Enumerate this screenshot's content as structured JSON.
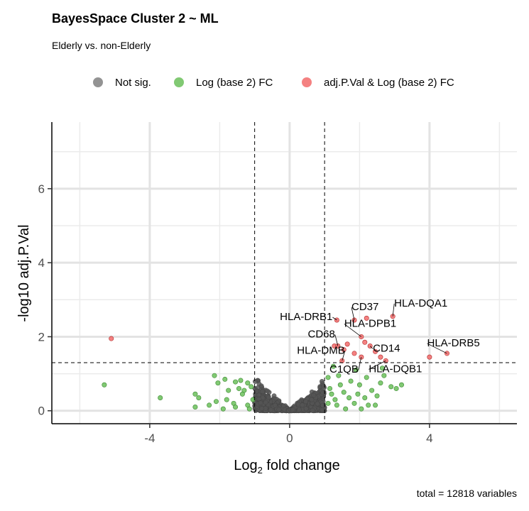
{
  "chart_data": {
    "type": "scatter",
    "title": "BayesSpace Cluster 2 ~ ML",
    "subtitle": "Elderly vs. non-Elderly",
    "xlabel_main": "Log",
    "xlabel_sub": "2",
    "xlabel_rest": " fold change",
    "ylabel": "-log10 adj.P.Val",
    "xlim": [
      -6.8,
      6.5
    ],
    "ylim": [
      -0.35,
      7.8
    ],
    "xticks": [
      -4,
      0,
      4
    ],
    "xtick_labels": [
      "-4",
      "0",
      "4"
    ],
    "yticks": [
      0,
      2,
      4,
      6
    ],
    "ytick_labels": [
      "0",
      "2",
      "4",
      "6"
    ],
    "minor_xticks": [
      -6,
      -2,
      2,
      6
    ],
    "minor_yticks": [
      1,
      3,
      5,
      7
    ],
    "fc_cutoffs": [
      -1,
      1
    ],
    "p_cutoff": 1.3,
    "grid": true,
    "legend_position": "top",
    "caption": "total = 12818 variables",
    "legend": [
      {
        "label": "Not sig.",
        "color": "#808080"
      },
      {
        "label": "Log (base 2) FC",
        "color": "#6bbf5a"
      },
      {
        "label": "adj.P.Val & Log (base 2) FC",
        "color": "#f26b6b"
      }
    ],
    "series": [
      {
        "name": "adj.P.Val & Log (base 2) FC",
        "color": "#f26b6b",
        "points": [
          [
            -5.1,
            1.95
          ],
          [
            1.28,
            1.75
          ],
          [
            1.38,
            1.75
          ],
          [
            1.55,
            1.65
          ],
          [
            1.35,
            2.45
          ],
          [
            1.85,
            2.45
          ],
          [
            2.2,
            2.5
          ],
          [
            1.65,
            1.8
          ],
          [
            2.05,
            2.0
          ],
          [
            2.3,
            1.75
          ],
          [
            2.45,
            1.6
          ],
          [
            2.6,
            1.45
          ],
          [
            2.05,
            1.45
          ],
          [
            1.5,
            1.35
          ],
          [
            1.85,
            1.55
          ],
          [
            2.95,
            2.55
          ],
          [
            2.75,
            1.35
          ],
          [
            4.0,
            1.45
          ],
          [
            4.5,
            1.55
          ],
          [
            2.15,
            1.85
          ]
        ]
      },
      {
        "name": "Log (base 2) FC",
        "color": "#6bbf5a",
        "points": [
          [
            -5.3,
            0.7
          ],
          [
            -3.7,
            0.35
          ],
          [
            -2.7,
            0.45
          ],
          [
            -2.6,
            0.35
          ],
          [
            -2.7,
            0.1
          ],
          [
            -2.15,
            0.95
          ],
          [
            -2.05,
            0.75
          ],
          [
            -1.85,
            0.85
          ],
          [
            -1.55,
            0.78
          ],
          [
            -1.35,
            0.45
          ],
          [
            -1.4,
            0.82
          ],
          [
            -1.2,
            0.75
          ],
          [
            -1.1,
            0.65
          ],
          [
            -1.8,
            0.3
          ],
          [
            -1.6,
            0.2
          ],
          [
            -1.2,
            0.15
          ],
          [
            -1.9,
            0.05
          ],
          [
            -2.1,
            0.25
          ],
          [
            -1.3,
            0.55
          ],
          [
            -1.05,
            0.3
          ],
          [
            -1.55,
            0.1
          ],
          [
            -1.75,
            0.55
          ],
          [
            -1.15,
            0.05
          ],
          [
            -2.3,
            0.15
          ],
          [
            -1.45,
            0.6
          ],
          [
            1.25,
            1.2
          ],
          [
            1.1,
            0.9
          ],
          [
            1.4,
            0.95
          ],
          [
            1.15,
            0.6
          ],
          [
            1.3,
            0.3
          ],
          [
            1.55,
            0.5
          ],
          [
            1.75,
            0.8
          ],
          [
            1.9,
            1.1
          ],
          [
            2.0,
            0.7
          ],
          [
            2.2,
            0.9
          ],
          [
            2.35,
            0.55
          ],
          [
            2.5,
            0.4
          ],
          [
            2.6,
            0.75
          ],
          [
            2.65,
            1.15
          ],
          [
            2.7,
            0.95
          ],
          [
            2.9,
            0.65
          ],
          [
            3.05,
            0.6
          ],
          [
            3.2,
            0.7
          ],
          [
            1.35,
            0.15
          ],
          [
            1.6,
            0.05
          ],
          [
            1.85,
            0.2
          ],
          [
            2.05,
            0.05
          ],
          [
            2.25,
            0.15
          ],
          [
            1.1,
            0.2
          ],
          [
            1.45,
            0.7
          ],
          [
            2.15,
            0.35
          ],
          [
            2.45,
            0.15
          ],
          [
            1.7,
            0.35
          ],
          [
            1.95,
            0.45
          ],
          [
            1.2,
            0.45
          ]
        ]
      }
    ],
    "labels": [
      {
        "text": "HLA-DRB1",
        "x": 1.35,
        "y": 2.45,
        "anchor": "end",
        "dx": -6,
        "dy": 0
      },
      {
        "text": "CD37",
        "x": 1.85,
        "y": 2.45,
        "anchor": "start",
        "dx": -4,
        "dy": -14
      },
      {
        "text": "HLA-DQA1",
        "x": 2.95,
        "y": 2.55,
        "anchor": "start",
        "dx": 2,
        "dy": -14
      },
      {
        "text": "HLA-DPB1",
        "x": 2.05,
        "y": 2.0,
        "anchor": "start",
        "dx": -24,
        "dy": -14
      },
      {
        "text": "CD68",
        "x": 1.38,
        "y": 1.75,
        "anchor": "end",
        "dx": -4,
        "dy": -12
      },
      {
        "text": "CD14",
        "x": 2.3,
        "y": 1.75,
        "anchor": "start",
        "dx": 4,
        "dy": 8
      },
      {
        "text": "HLA-DRB5",
        "x": 4.5,
        "y": 1.55,
        "anchor": "start",
        "dx": -28,
        "dy": -10
      },
      {
        "text": "HLA-DMB",
        "x": 1.5,
        "y": 1.35,
        "anchor": "end",
        "dx": 4,
        "dy": -10
      },
      {
        "text": "HLA-DQB1",
        "x": 2.75,
        "y": 1.35,
        "anchor": "start",
        "dx": -24,
        "dy": 16
      },
      {
        "text": "C1QB",
        "x": 2.05,
        "y": 1.45,
        "anchor": "end",
        "dx": -4,
        "dy": 22
      }
    ],
    "not_sig_note": "dense cloud of non-significant genes"
  }
}
